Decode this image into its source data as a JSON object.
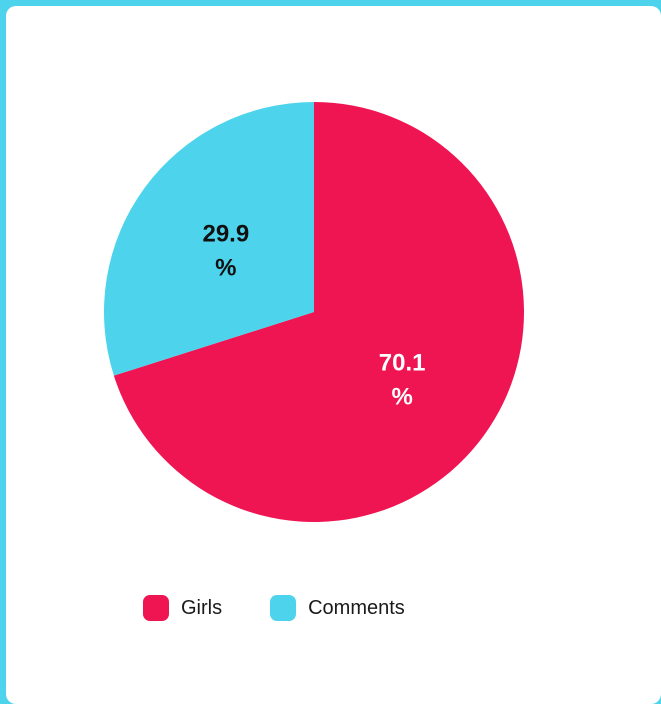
{
  "chart_data": {
    "type": "pie",
    "slices": [
      {
        "name": "Girls",
        "value": 70.1,
        "label_line1": "70.1",
        "label_line2": "%",
        "color": "#ef1452",
        "label_color": "#ffffff"
      },
      {
        "name": "Comments",
        "value": 29.9,
        "label_line1": "29.9",
        "label_line2": "%",
        "color": "#4dd4ec",
        "label_color": "#111111"
      }
    ],
    "legend": {
      "position": "bottom",
      "items": [
        "Girls",
        "Comments"
      ]
    },
    "start": "top",
    "direction": "clockwise"
  },
  "colors": {
    "frame": "#4dd4ec",
    "card": "#ffffff"
  }
}
